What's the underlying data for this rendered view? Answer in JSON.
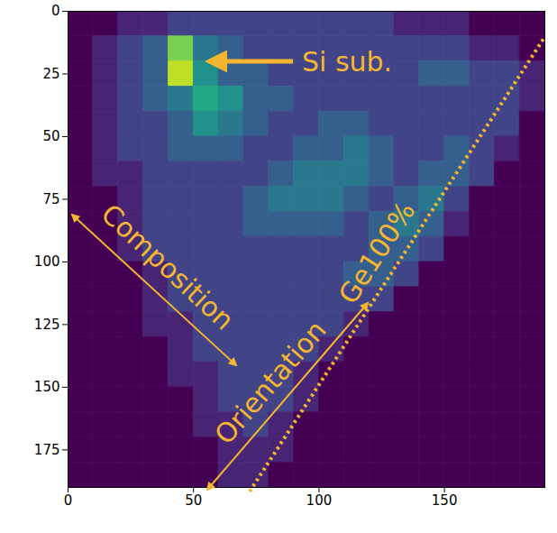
{
  "chart_data": {
    "type": "heatmap",
    "xlim": [
      0,
      190
    ],
    "ylim": [
      190,
      0
    ],
    "xticks": [
      0,
      50,
      100,
      150
    ],
    "yticks": [
      0,
      25,
      50,
      75,
      100,
      125,
      150,
      175
    ],
    "x_bins": [
      0,
      10,
      20,
      30,
      40,
      50,
      60,
      70,
      80,
      90,
      100,
      110,
      120,
      130,
      140,
      150,
      160,
      170,
      180,
      190
    ],
    "y_bins": [
      0,
      10,
      20,
      30,
      40,
      50,
      60,
      70,
      80,
      90,
      100,
      110,
      120,
      130,
      140,
      150,
      160,
      170,
      180,
      190
    ],
    "cells": [
      [
        0,
        0,
        1,
        1,
        2,
        2,
        2,
        2,
        2,
        2,
        2,
        2,
        2,
        1,
        1,
        1,
        0,
        0,
        0
      ],
      [
        0,
        1,
        2,
        3,
        8,
        4,
        3,
        2,
        2,
        2,
        2,
        2,
        2,
        2,
        2,
        2,
        1,
        1,
        0
      ],
      [
        0,
        1,
        2,
        3,
        9,
        5,
        3,
        3,
        2,
        2,
        2,
        2,
        2,
        2,
        3,
        3,
        2,
        2,
        1
      ],
      [
        0,
        1,
        2,
        3,
        4,
        6,
        5,
        3,
        3,
        2,
        2,
        2,
        2,
        2,
        2,
        2,
        2,
        2,
        1
      ],
      [
        0,
        1,
        2,
        2,
        3,
        5,
        4,
        3,
        2,
        2,
        3,
        3,
        2,
        2,
        2,
        2,
        2,
        2,
        0
      ],
      [
        0,
        1,
        2,
        2,
        3,
        3,
        3,
        2,
        2,
        3,
        3,
        4,
        3,
        2,
        2,
        3,
        2,
        1,
        0
      ],
      [
        0,
        1,
        1,
        2,
        2,
        2,
        2,
        2,
        3,
        4,
        4,
        4,
        3,
        2,
        3,
        3,
        2,
        0,
        0
      ],
      [
        0,
        0,
        1,
        2,
        2,
        2,
        2,
        3,
        4,
        4,
        4,
        3,
        2,
        3,
        4,
        2,
        0,
        0,
        0
      ],
      [
        0,
        0,
        1,
        2,
        2,
        2,
        2,
        3,
        3,
        3,
        3,
        2,
        3,
        4,
        3,
        1,
        0,
        0,
        0
      ],
      [
        0,
        0,
        1,
        2,
        2,
        2,
        2,
        2,
        2,
        2,
        2,
        2,
        3,
        3,
        2,
        0,
        0,
        0,
        0
      ],
      [
        0,
        0,
        0,
        1,
        2,
        2,
        2,
        2,
        2,
        2,
        2,
        3,
        3,
        2,
        0,
        0,
        0,
        0,
        0
      ],
      [
        0,
        0,
        0,
        1,
        2,
        2,
        2,
        2,
        2,
        2,
        2,
        2,
        2,
        0,
        0,
        0,
        0,
        0,
        0
      ],
      [
        0,
        0,
        0,
        1,
        1,
        2,
        2,
        2,
        2,
        2,
        2,
        1,
        0,
        0,
        0,
        0,
        0,
        0,
        0
      ],
      [
        0,
        0,
        0,
        0,
        1,
        2,
        2,
        2,
        2,
        2,
        1,
        0,
        0,
        0,
        0,
        0,
        0,
        0,
        0
      ],
      [
        0,
        0,
        0,
        0,
        1,
        1,
        2,
        2,
        2,
        1,
        0,
        0,
        0,
        0,
        0,
        0,
        0,
        0,
        0
      ],
      [
        0,
        0,
        0,
        0,
        0,
        1,
        2,
        2,
        2,
        1,
        0,
        0,
        0,
        0,
        0,
        0,
        0,
        0,
        0
      ],
      [
        0,
        0,
        0,
        0,
        0,
        1,
        1,
        2,
        1,
        0,
        0,
        0,
        0,
        0,
        0,
        0,
        0,
        0,
        0
      ],
      [
        0,
        0,
        0,
        0,
        0,
        0,
        1,
        1,
        1,
        0,
        0,
        0,
        0,
        0,
        0,
        0,
        0,
        0,
        0
      ],
      [
        0,
        0,
        0,
        0,
        0,
        0,
        1,
        1,
        0,
        0,
        0,
        0,
        0,
        0,
        0,
        0,
        0,
        0,
        0
      ]
    ],
    "zlim": [
      0,
      10
    ],
    "color": "viridis",
    "annotations": [
      "Si sub.",
      "Composition",
      "Orientation",
      "Ge100%"
    ]
  }
}
